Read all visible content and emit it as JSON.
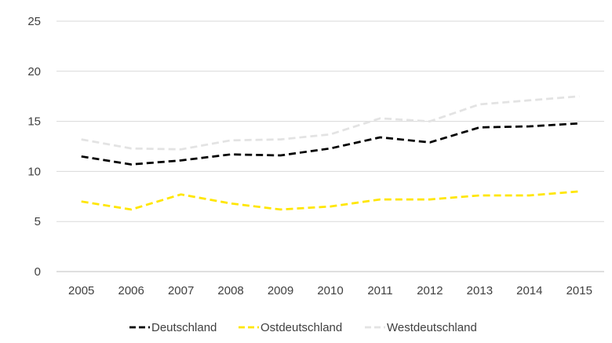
{
  "chart_data": {
    "type": "line",
    "title": "",
    "xlabel": "",
    "ylabel": "",
    "x": [
      "2005",
      "2006",
      "2007",
      "2008",
      "2009",
      "2010",
      "2011",
      "2012",
      "2013",
      "2014",
      "2015"
    ],
    "ylim": [
      0,
      25
    ],
    "yticks": [
      0,
      5,
      10,
      15,
      20,
      25
    ],
    "grid": true,
    "legend_position": "bottom",
    "series": [
      {
        "name": "Deutschland",
        "color": "#000000",
        "dash": "dashed",
        "values": [
          11.5,
          10.7,
          11.1,
          11.7,
          11.6,
          12.3,
          13.4,
          12.9,
          14.4,
          14.5,
          14.8
        ]
      },
      {
        "name": "Ostdeutschland",
        "color": "#FFE600",
        "dash": "dashed",
        "values": [
          7.0,
          6.2,
          7.7,
          6.8,
          6.2,
          6.5,
          7.2,
          7.2,
          7.6,
          7.6,
          8.0
        ]
      },
      {
        "name": "Westdeutschland",
        "color": "#E3E3E3",
        "dash": "dashed",
        "values": [
          13.2,
          12.3,
          12.2,
          13.1,
          13.2,
          13.7,
          15.3,
          15.0,
          16.7,
          17.1,
          17.5
        ]
      }
    ]
  }
}
